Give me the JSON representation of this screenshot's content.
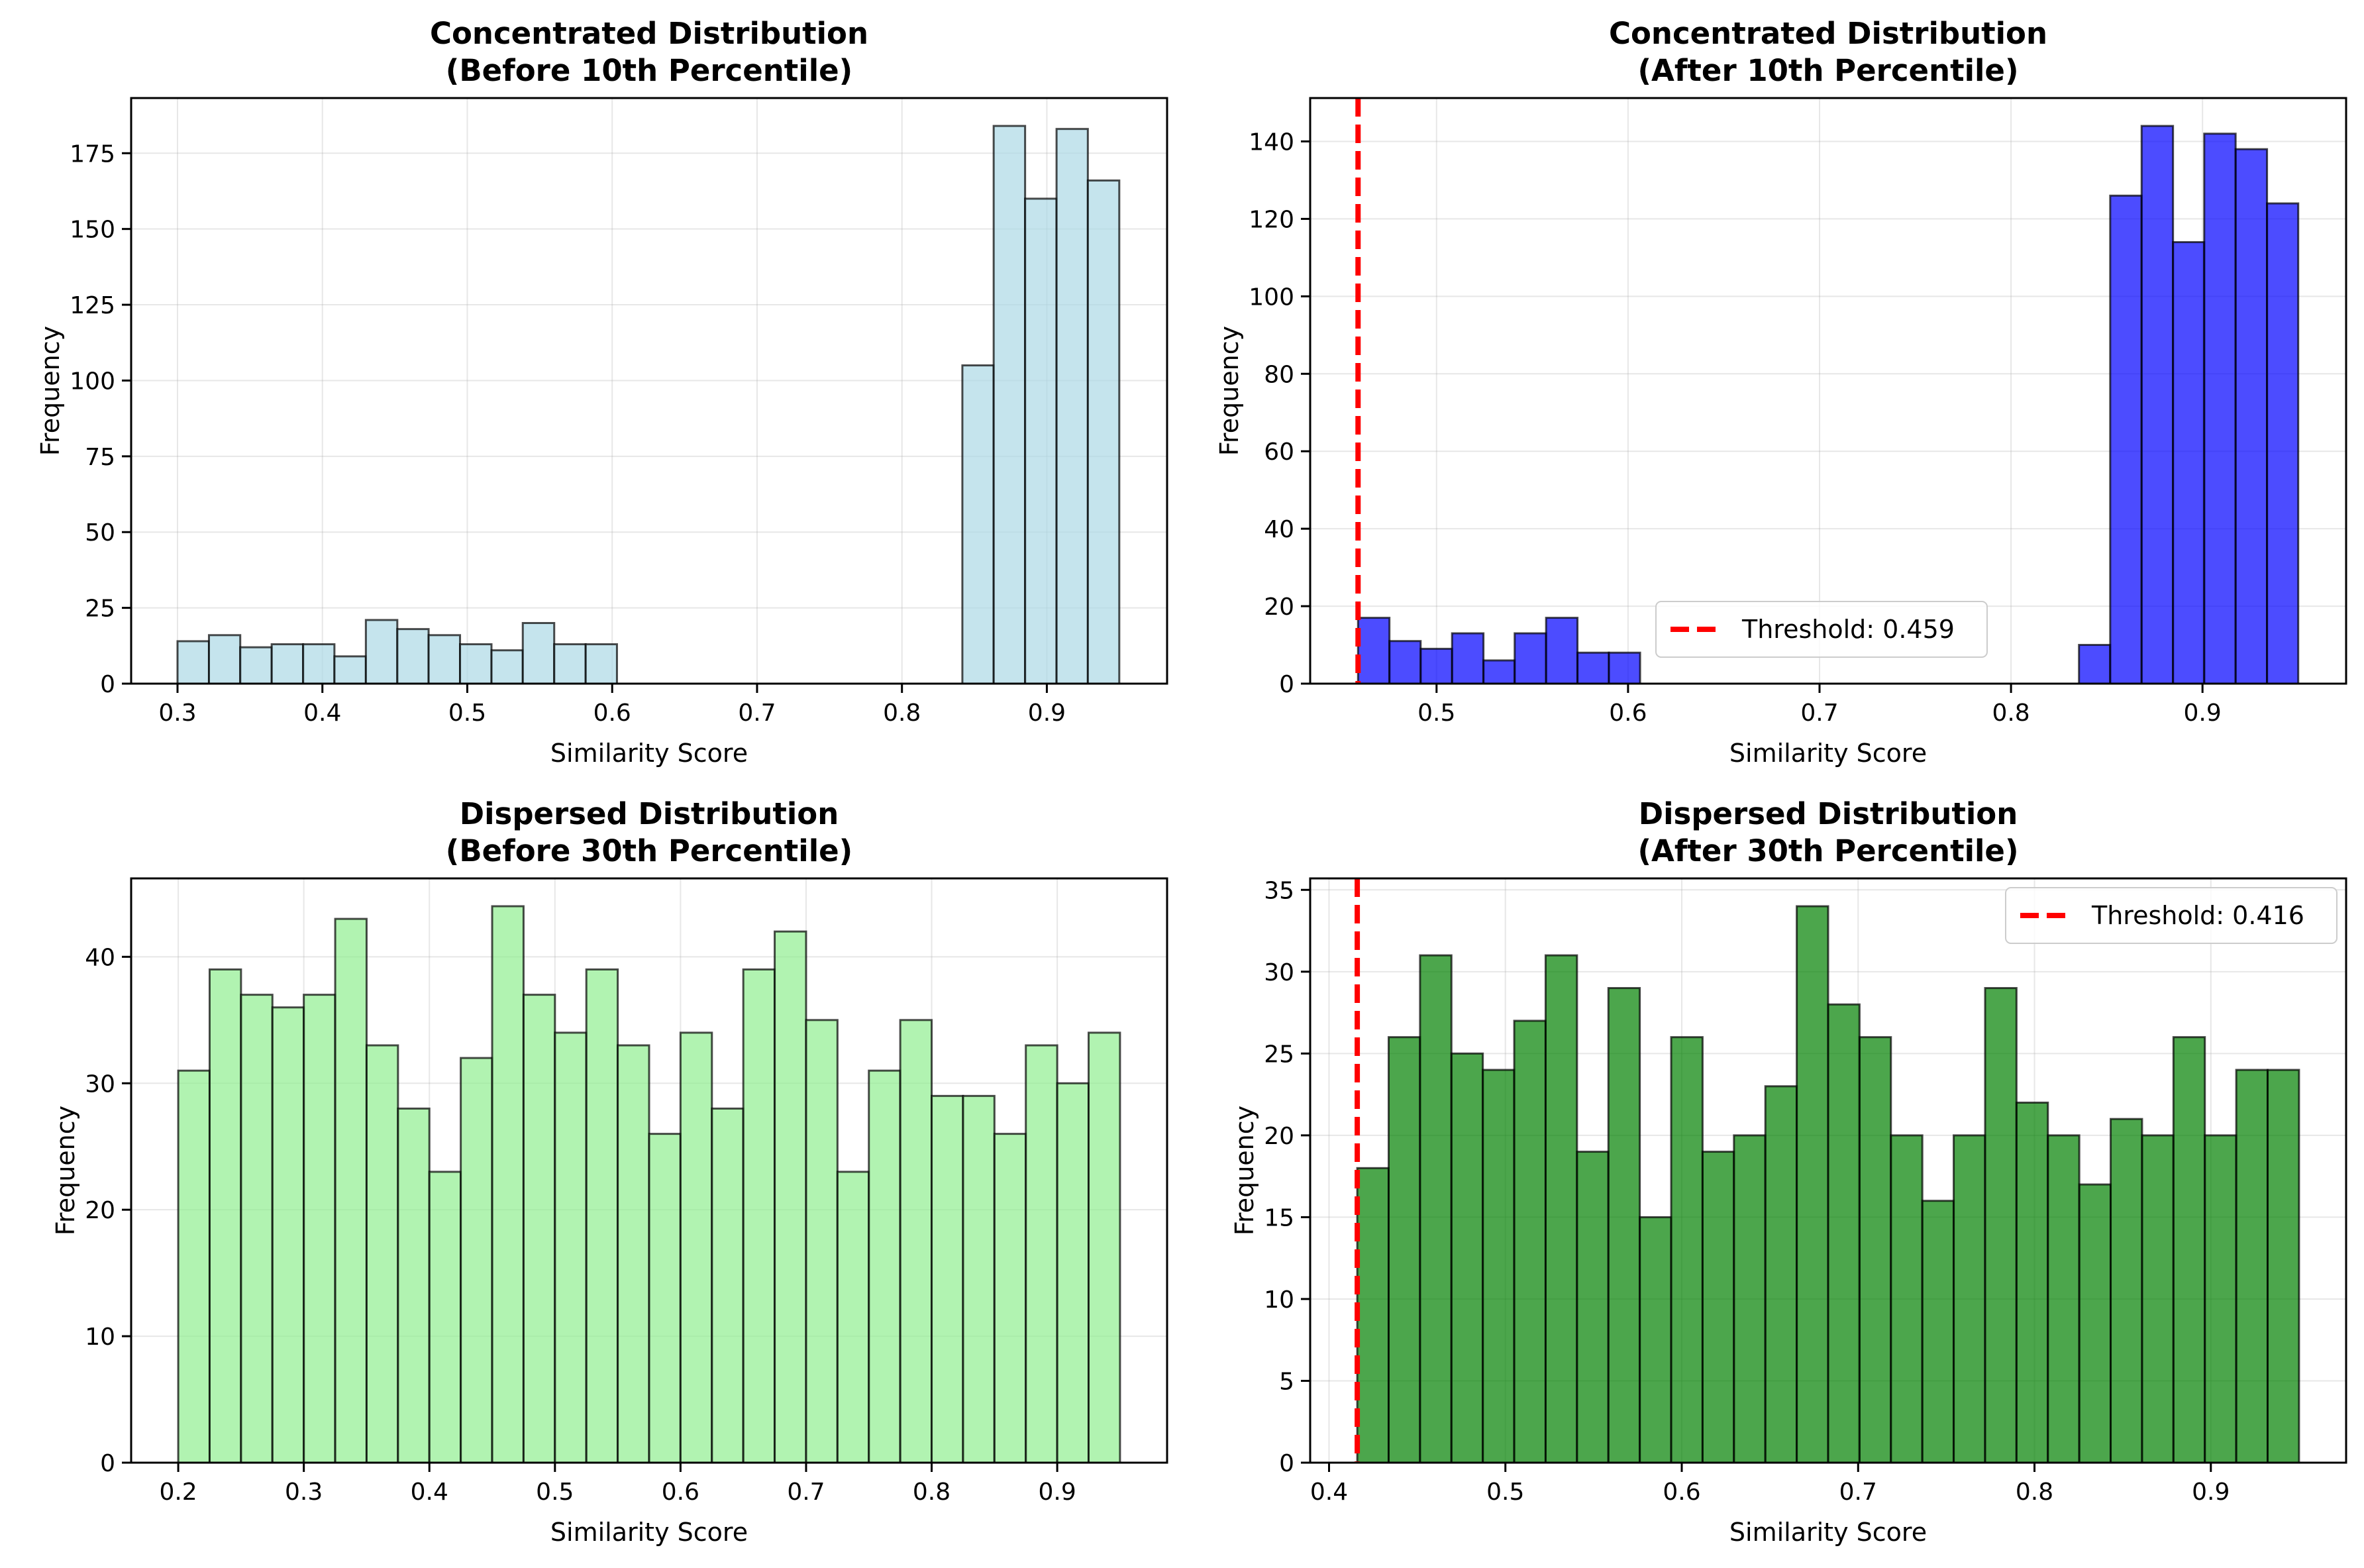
{
  "chart_data": [
    {
      "type": "bar",
      "title": [
        "Concentrated Distribution",
        "(Before 10th Percentile)"
      ],
      "xlabel": "Similarity Score",
      "ylabel": "Frequency",
      "xlim": [
        0.268,
        0.983
      ],
      "ylim": [
        0,
        193.2
      ],
      "xticks": [
        0.3,
        0.4,
        0.5,
        0.6,
        0.7,
        0.8,
        0.9
      ],
      "yticks": [
        0,
        25,
        50,
        75,
        100,
        125,
        150,
        175
      ],
      "grid": true,
      "bar_color": "#ADD8E6",
      "bin_width": 0.02167,
      "bins": [
        {
          "x0": 0.3,
          "x1": 0.3217,
          "value": 14
        },
        {
          "x0": 0.3217,
          "x1": 0.3433,
          "value": 16
        },
        {
          "x0": 0.3433,
          "x1": 0.365,
          "value": 12
        },
        {
          "x0": 0.365,
          "x1": 0.3867,
          "value": 13
        },
        {
          "x0": 0.3867,
          "x1": 0.4083,
          "value": 13
        },
        {
          "x0": 0.4083,
          "x1": 0.43,
          "value": 9
        },
        {
          "x0": 0.43,
          "x1": 0.4517,
          "value": 21
        },
        {
          "x0": 0.4517,
          "x1": 0.4733,
          "value": 18
        },
        {
          "x0": 0.4733,
          "x1": 0.495,
          "value": 16
        },
        {
          "x0": 0.495,
          "x1": 0.5167,
          "value": 13
        },
        {
          "x0": 0.5167,
          "x1": 0.5383,
          "value": 11
        },
        {
          "x0": 0.5383,
          "x1": 0.56,
          "value": 20
        },
        {
          "x0": 0.56,
          "x1": 0.5817,
          "value": 13
        },
        {
          "x0": 0.5817,
          "x1": 0.6033,
          "value": 13
        },
        {
          "x0": 0.8417,
          "x1": 0.8633,
          "value": 105
        },
        {
          "x0": 0.8633,
          "x1": 0.885,
          "value": 184
        },
        {
          "x0": 0.885,
          "x1": 0.9067,
          "value": 160
        },
        {
          "x0": 0.9067,
          "x1": 0.9283,
          "value": 183
        },
        {
          "x0": 0.9283,
          "x1": 0.95,
          "value": 166
        }
      ]
    },
    {
      "type": "bar",
      "title": [
        "Concentrated Distribution",
        "(After 10th Percentile)"
      ],
      "xlabel": "Similarity Score",
      "ylabel": "Frequency",
      "xlim": [
        0.434,
        0.975
      ],
      "ylim": [
        0,
        151.2
      ],
      "xticks": [
        0.5,
        0.6,
        0.7,
        0.8,
        0.9
      ],
      "yticks": [
        0,
        20,
        40,
        60,
        80,
        100,
        120,
        140
      ],
      "grid": true,
      "bar_color": "#0000FF",
      "bin_width": 0.01637,
      "bins": [
        {
          "x0": 0.459,
          "x1": 0.4754,
          "value": 17
        },
        {
          "x0": 0.4754,
          "x1": 0.4917,
          "value": 11
        },
        {
          "x0": 0.4917,
          "x1": 0.5081,
          "value": 9
        },
        {
          "x0": 0.5081,
          "x1": 0.5245,
          "value": 13
        },
        {
          "x0": 0.5245,
          "x1": 0.5408,
          "value": 6
        },
        {
          "x0": 0.5408,
          "x1": 0.5572,
          "value": 13
        },
        {
          "x0": 0.5572,
          "x1": 0.5736,
          "value": 17
        },
        {
          "x0": 0.5736,
          "x1": 0.59,
          "value": 8
        },
        {
          "x0": 0.59,
          "x1": 0.6063,
          "value": 8
        },
        {
          "x0": 0.8355,
          "x1": 0.8518,
          "value": 10
        },
        {
          "x0": 0.8518,
          "x1": 0.8682,
          "value": 126
        },
        {
          "x0": 0.8682,
          "x1": 0.8846,
          "value": 144
        },
        {
          "x0": 0.8846,
          "x1": 0.9009,
          "value": 114
        },
        {
          "x0": 0.9009,
          "x1": 0.9173,
          "value": 142
        },
        {
          "x0": 0.9173,
          "x1": 0.9337,
          "value": 138
        },
        {
          "x0": 0.9337,
          "x1": 0.95,
          "value": 124
        }
      ],
      "threshold": {
        "x": 0.459,
        "label": "Threshold: 0.459",
        "color": "#FF0000"
      },
      "legend": "lower-center"
    },
    {
      "type": "bar",
      "title": [
        "Dispersed Distribution",
        "(Before 30th Percentile)"
      ],
      "xlabel": "Similarity Score",
      "ylabel": "Frequency",
      "xlim": [
        0.1625,
        0.9875
      ],
      "ylim": [
        0,
        46.2
      ],
      "xticks": [
        0.2,
        0.3,
        0.4,
        0.5,
        0.6,
        0.7,
        0.8,
        0.9
      ],
      "yticks": [
        0,
        10,
        20,
        30,
        40
      ],
      "grid": true,
      "bar_color": "#90EE90",
      "bin_width": 0.025,
      "values": [
        31,
        39,
        37,
        36,
        37,
        43,
        33,
        28,
        23,
        32,
        44,
        37,
        34,
        39,
        33,
        26,
        34,
        28,
        39,
        42,
        35,
        23,
        31,
        35,
        29,
        29,
        26,
        33,
        30,
        34
      ],
      "x_start": 0.2
    },
    {
      "type": "bar",
      "title": [
        "Dispersed Distribution",
        "(After 30th Percentile)"
      ],
      "xlabel": "Similarity Score",
      "ylabel": "Frequency",
      "xlim": [
        0.3893,
        0.9767
      ],
      "ylim": [
        0,
        35.7
      ],
      "xticks": [
        0.4,
        0.5,
        0.6,
        0.7,
        0.8,
        0.9
      ],
      "yticks": [
        0,
        5,
        10,
        15,
        20,
        25,
        30,
        35
      ],
      "grid": true,
      "bar_color": "#008000",
      "bin_width": 0.0178,
      "values": [
        18,
        26,
        31,
        25,
        24,
        27,
        31,
        19,
        29,
        15,
        26,
        19,
        20,
        23,
        34,
        28,
        26,
        20,
        16,
        20,
        29,
        22,
        20,
        17,
        21,
        20,
        26,
        20,
        24,
        24
      ],
      "x_start": 0.416,
      "threshold": {
        "x": 0.416,
        "label": "Threshold: 0.416",
        "color": "#FF0000"
      },
      "legend": "top-right"
    }
  ]
}
